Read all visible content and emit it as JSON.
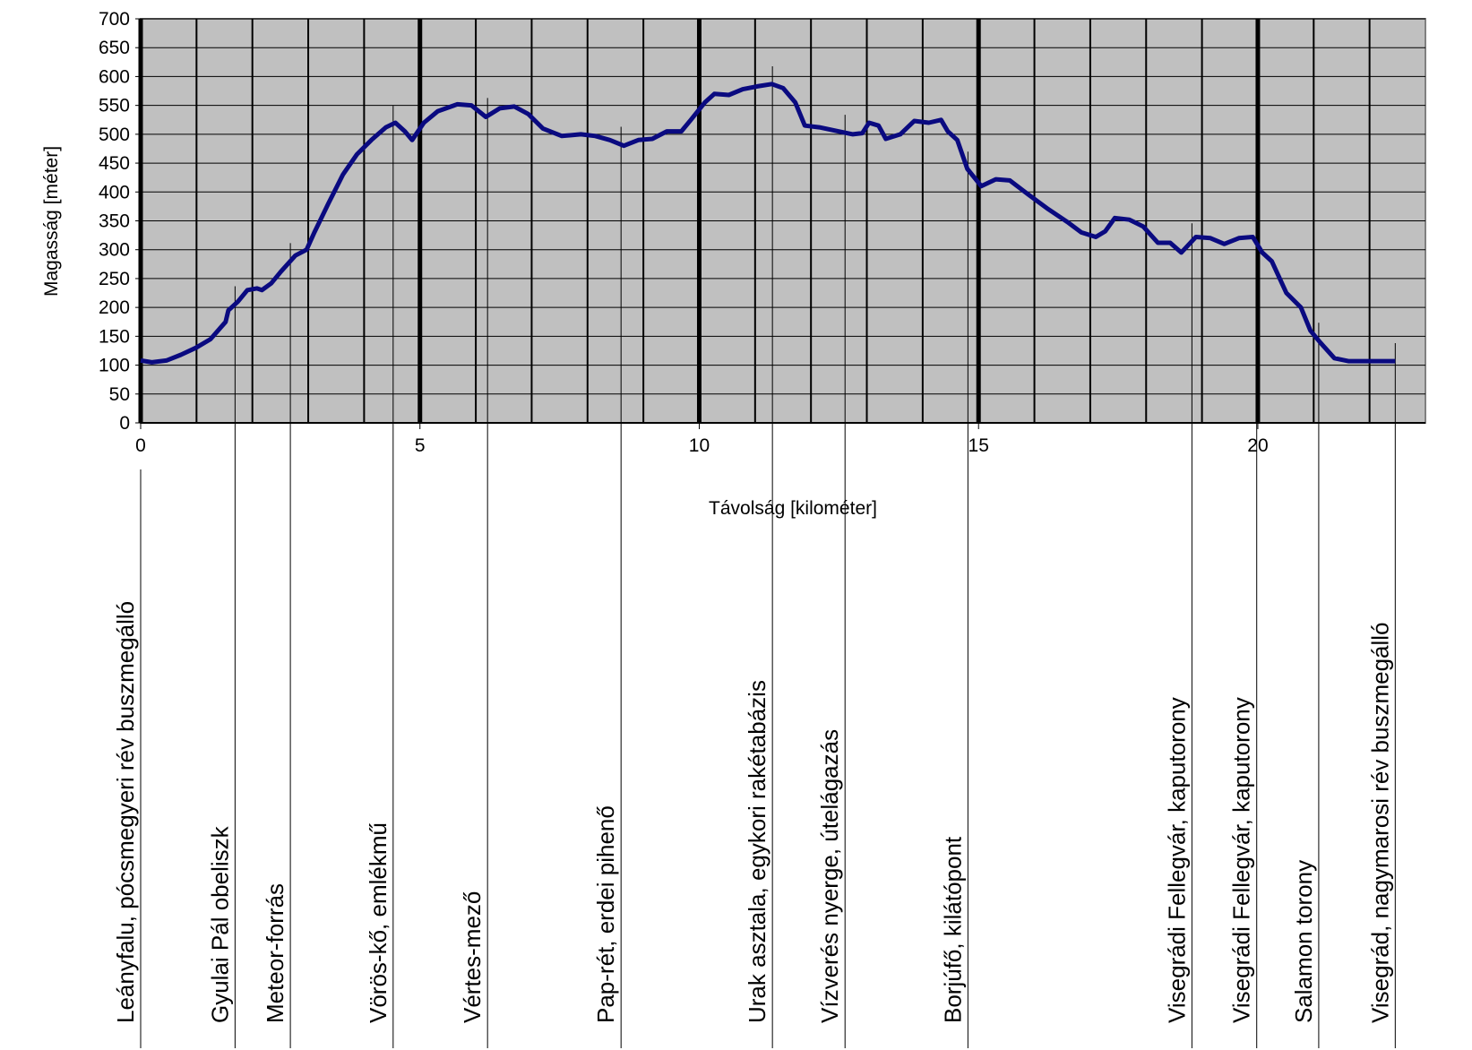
{
  "chart_data": {
    "type": "line",
    "xlabel": "Távolság [kilométer]",
    "ylabel": "Magasság [méter]",
    "xlim": [
      0,
      23
    ],
    "xticks": [
      0,
      5,
      10,
      15,
      20
    ],
    "x_gridlines": [
      1,
      2,
      3,
      4,
      6,
      7,
      8,
      9,
      11,
      12,
      13,
      14,
      16,
      17,
      18,
      19,
      21,
      22
    ],
    "ylim": [
      0,
      700
    ],
    "yticks": [
      0,
      50,
      100,
      150,
      200,
      250,
      300,
      350,
      400,
      450,
      500,
      550,
      600,
      650,
      700
    ],
    "grid": true,
    "background": "#c0c0c0",
    "series": [
      {
        "name": null,
        "color": "#0a0a80",
        "x": [
          0,
          0.2,
          0.46,
          0.72,
          0.99,
          1.25,
          1.52,
          1.57,
          1.74,
          1.91,
          2.08,
          2.17,
          2.34,
          2.51,
          2.77,
          2.97,
          3.11,
          3.36,
          3.62,
          3.87,
          4.13,
          4.39,
          4.56,
          4.73,
          4.86,
          5.07,
          5.32,
          5.67,
          5.92,
          6.18,
          6.43,
          6.69,
          6.94,
          7.2,
          7.54,
          7.88,
          8.14,
          8.4,
          8.65,
          8.91,
          9.16,
          9.42,
          9.68,
          9.85,
          10.1,
          10.27,
          10.53,
          10.78,
          11.04,
          11.3,
          11.5,
          11.72,
          11.89,
          12.15,
          12.49,
          12.75,
          12.92,
          13.04,
          13.21,
          13.34,
          13.6,
          13.85,
          14.11,
          14.33,
          14.45,
          14.62,
          14.8,
          15.05,
          15.31,
          15.56,
          15.9,
          16.25,
          16.59,
          16.84,
          17.1,
          17.27,
          17.44,
          17.7,
          17.95,
          18.21,
          18.43,
          18.63,
          18.89,
          19.15,
          19.4,
          19.66,
          19.91,
          20.08,
          20.25,
          20.51,
          20.77,
          20.94,
          21.11,
          21.37,
          21.62,
          22.05,
          22.46
        ],
        "values": [
          108,
          105,
          108,
          118,
          130,
          145,
          175,
          195,
          210,
          230,
          233,
          230,
          242,
          262,
          290,
          300,
          330,
          380,
          430,
          465,
          490,
          512,
          520,
          505,
          490,
          520,
          540,
          552,
          550,
          530,
          545,
          548,
          535,
          510,
          497,
          500,
          497,
          490,
          480,
          490,
          492,
          505,
          505,
          525,
          555,
          570,
          568,
          578,
          583,
          587,
          580,
          555,
          515,
          512,
          505,
          500,
          502,
          520,
          515,
          492,
          500,
          523,
          520,
          525,
          505,
          490,
          440,
          410,
          422,
          420,
          395,
          370,
          348,
          330,
          322,
          332,
          355,
          352,
          340,
          312,
          312,
          295,
          322,
          320,
          310,
          320,
          322,
          295,
          280,
          225,
          200,
          160,
          140,
          112,
          107,
          107,
          107
        ]
      }
    ],
    "landmarks": [
      {
        "name": "Leányfalu, pócsmegyeri rév buszmegálló",
        "km": 0
      },
      {
        "name": "Gyulai Pál obeliszk",
        "km": 1.69
      },
      {
        "name": "Meteor-forrás",
        "km": 2.68
      },
      {
        "name": "Vörös-kő, emlékmű",
        "km": 4.52
      },
      {
        "name": "Vértes-mező",
        "km": 6.21
      },
      {
        "name": "Pap-rét, erdei pihenő",
        "km": 8.6
      },
      {
        "name": "Urak asztala, egykori rakétabázis",
        "km": 11.31
      },
      {
        "name": "Vízverés nyerge, útelágazás",
        "km": 12.61
      },
      {
        "name": "Borjúfő, kilátópont",
        "km": 14.81
      },
      {
        "name": "Visegrádi Fellegvár, kaputorony",
        "km": 18.82
      },
      {
        "name": "Visegrádi Fellegvár, kaputorony",
        "km": 19.98
      },
      {
        "name": "Salamon torony",
        "km": 21.09
      },
      {
        "name": "Visegrád, nagymarosi rév buszmegálló",
        "km": 22.46
      }
    ]
  }
}
